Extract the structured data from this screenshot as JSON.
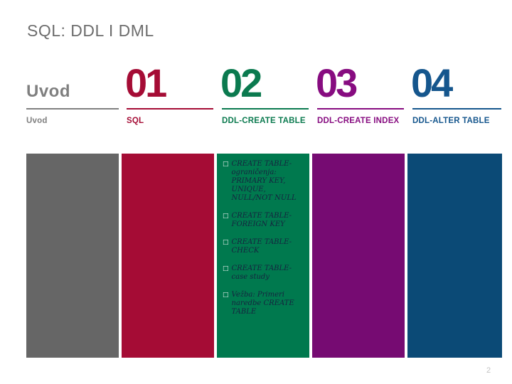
{
  "slide": {
    "title": "SQL: DDL I DML",
    "page_number": "2"
  },
  "intro": {
    "heading": "Uvod",
    "label": "Uvod",
    "text_color": "#7f7f7f",
    "block_color": "#666666"
  },
  "sections": [
    {
      "number": "01",
      "label": "SQL",
      "accent_color": "#a50c35",
      "block_color": "#a50c35",
      "items": []
    },
    {
      "number": "02",
      "label": "DDL-CREATE TABLE",
      "accent_color": "#0b7a4f",
      "block_color": "#00794e",
      "bullet_glyph": "□",
      "items": [
        "CREATE TABLE-ograničenja: PRIMARY KEY, UNIQUE, NULL/NOT NULL",
        "CREATE TABLE-FOREIGN KEY",
        "CREATE TABLE-CHECK",
        "CREATE TABLE-case study",
        "Vežba: Primeri naredbe CREATE TABLE"
      ]
    },
    {
      "number": "03",
      "label": "DDL-CREATE INDEX",
      "accent_color": "#870c80",
      "block_color": "#760b72",
      "items": []
    },
    {
      "number": "04",
      "label": "DDL-ALTER TABLE",
      "accent_color": "#15568d",
      "block_color": "#0b4a76",
      "items": []
    }
  ]
}
